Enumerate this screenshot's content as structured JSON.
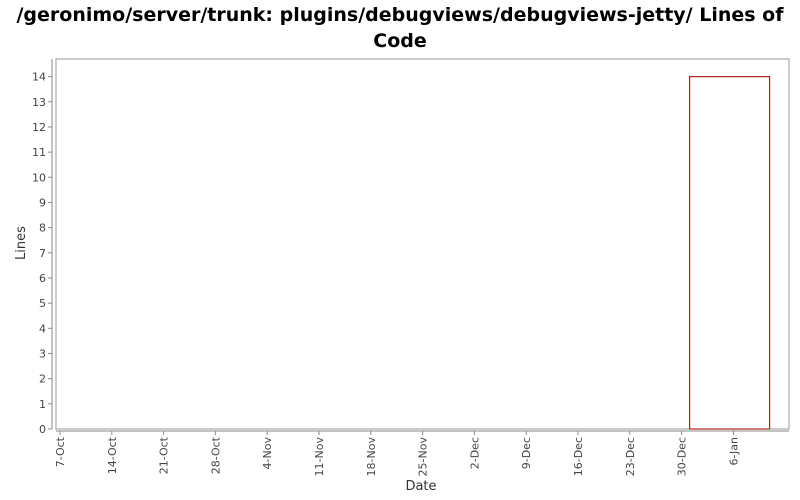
{
  "chart_data": {
    "type": "bar",
    "title_line1": "/geronimo/server/trunk: plugins/debugviews/debugviews-jetty/ Lines of",
    "title_line2": "Code",
    "xlabel": "Date",
    "ylabel": "Lines",
    "ylim": [
      0,
      14.7
    ],
    "yticks": [
      0,
      1,
      2,
      3,
      4,
      5,
      6,
      7,
      8,
      9,
      10,
      11,
      12,
      13,
      14
    ],
    "xticks": [
      "7-Oct",
      "14-Oct",
      "21-Oct",
      "28-Oct",
      "4-Nov",
      "11-Nov",
      "18-Nov",
      "25-Nov",
      "2-Dec",
      "9-Dec",
      "16-Dec",
      "23-Dec",
      "30-Dec",
      "6-Jan"
    ],
    "categories": [
      "30-Dec"
    ],
    "values": [
      14
    ],
    "grid": false,
    "legend": false,
    "colors": {
      "bar_stroke": "#b22222",
      "bar_fill": "#ffffff",
      "axis": "#888888",
      "plot_border": "#999999"
    }
  }
}
